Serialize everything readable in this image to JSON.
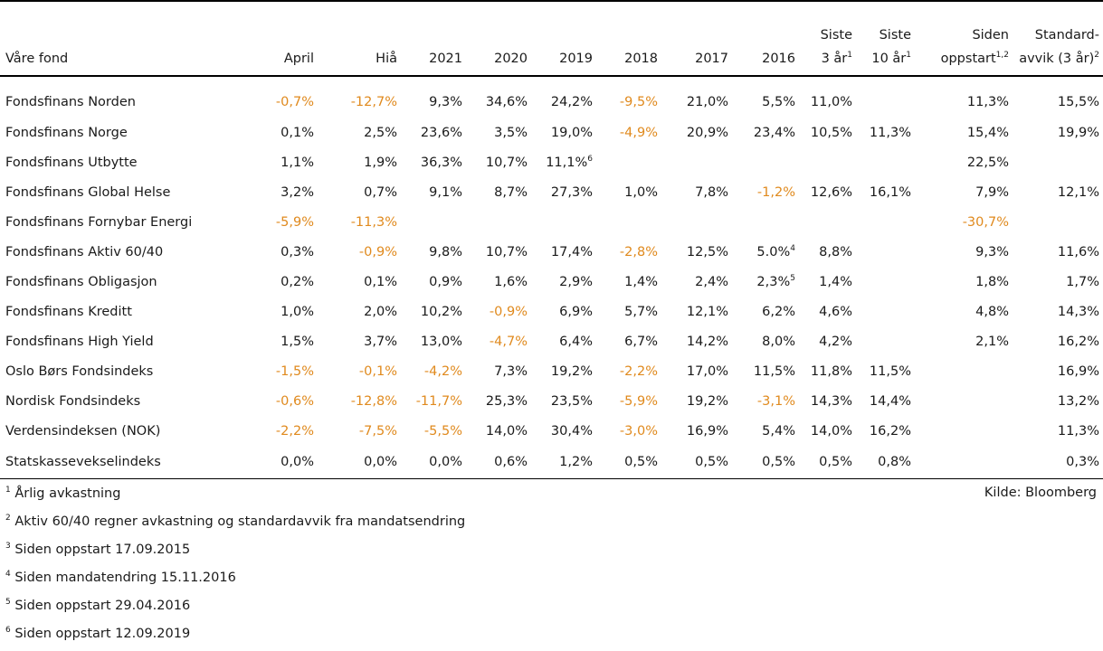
{
  "headers": [
    {
      "main": "Våre fond",
      "sup": ""
    },
    {
      "main": "April",
      "sup": ""
    },
    {
      "main": "Hiå",
      "sup": ""
    },
    {
      "main": "2021",
      "sup": ""
    },
    {
      "main": "2020",
      "sup": ""
    },
    {
      "main": "2019",
      "sup": ""
    },
    {
      "main": "2018",
      "sup": ""
    },
    {
      "main": "2017",
      "sup": ""
    },
    {
      "main": "2016",
      "sup": ""
    },
    {
      "line1": "Siste",
      "main": "3 år",
      "sup": "1"
    },
    {
      "line1": "Siste",
      "main": "10 år",
      "sup": "1"
    },
    {
      "line1": "Siden",
      "main": "oppstart",
      "sup": "1,2"
    },
    {
      "line1": "Standard-",
      "main": "avvik (3 år)",
      "sup": "2"
    }
  ],
  "rows": [
    {
      "name": "Fondsfinans Norden",
      "cells": [
        "-0,7%",
        "-12,7%",
        "9,3%",
        "34,6%",
        "24,2%",
        "-9,5%",
        "21,0%",
        "5,5%",
        "11,0%",
        "",
        "11,3%",
        "15,5%"
      ]
    },
    {
      "name": "Fondsfinans Norge",
      "cells": [
        "0,1%",
        "2,5%",
        "23,6%",
        "3,5%",
        "19,0%",
        "-4,9%",
        "20,9%",
        "23,4%",
        "10,5%",
        "11,3%",
        "15,4%",
        "19,9%"
      ]
    },
    {
      "name": "Fondsfinans Utbytte",
      "cells": [
        "1,1%",
        "1,9%",
        "36,3%",
        "10,7%",
        "11,1%",
        "",
        "",
        "",
        "",
        "",
        "22,5%",
        ""
      ],
      "sups": {
        "4": "6"
      }
    },
    {
      "name": "Fondsfinans Global Helse",
      "cells": [
        "3,2%",
        "0,7%",
        "9,1%",
        "8,7%",
        "27,3%",
        "1,0%",
        "7,8%",
        "-1,2%",
        "12,6%",
        "16,1%",
        "7,9%",
        "12,1%"
      ]
    },
    {
      "name": "Fondsfinans Fornybar Energi",
      "cells": [
        "-5,9%",
        "-11,3%",
        "",
        "",
        "",
        "",
        "",
        "",
        "",
        "",
        "-30,7%",
        ""
      ]
    },
    {
      "name": "Fondsfinans Aktiv 60/40",
      "cells": [
        "0,3%",
        "-0,9%",
        "9,8%",
        "10,7%",
        "17,4%",
        "-2,8%",
        "12,5%",
        "5.0%",
        "8,8%",
        "",
        "9,3%",
        "11,6%"
      ],
      "sups": {
        "7": "4"
      }
    },
    {
      "name": "Fondsfinans Obligasjon",
      "cells": [
        "0,2%",
        "0,1%",
        "0,9%",
        "1,6%",
        "2,9%",
        "1,4%",
        "2,4%",
        "2,3%",
        "1,4%",
        "",
        "1,8%",
        "1,7%"
      ],
      "sups": {
        "7": "5"
      }
    },
    {
      "name": "Fondsfinans Kreditt",
      "cells": [
        "1,0%",
        "2,0%",
        "10,2%",
        "-0,9%",
        "6,9%",
        "5,7%",
        "12,1%",
        "6,2%",
        "4,6%",
        "",
        "4,8%",
        "14,3%"
      ]
    },
    {
      "name": "Fondsfinans High Yield",
      "cells": [
        "1,5%",
        "3,7%",
        "13,0%",
        "-4,7%",
        "6,4%",
        "6,7%",
        "14,2%",
        "8,0%",
        "4,2%",
        "",
        "2,1%",
        "16,2%"
      ]
    },
    {
      "name": "Oslo Børs Fondsindeks",
      "cells": [
        "-1,5%",
        "-0,1%",
        "-4,2%",
        "7,3%",
        "19,2%",
        "-2,2%",
        "17,0%",
        "11,5%",
        "11,8%",
        "11,5%",
        "",
        "16,9%"
      ]
    },
    {
      "name": "Nordisk Fondsindeks",
      "cells": [
        "-0,6%",
        "-12,8%",
        "-11,7%",
        "25,3%",
        "23,5%",
        "-5,9%",
        "19,2%",
        "-3,1%",
        "14,3%",
        "14,4%",
        "",
        "13,2%"
      ]
    },
    {
      "name": "Verdensindeksen (NOK)",
      "cells": [
        "-2,2%",
        "-7,5%",
        "-5,5%",
        "14,0%",
        "30,4%",
        "-3,0%",
        "16,9%",
        "5,4%",
        "14,0%",
        "16,2%",
        "",
        "11,3%"
      ]
    },
    {
      "name": "Statskassevekselindeks",
      "cells": [
        "0,0%",
        "0,0%",
        "0,0%",
        "0,6%",
        "1,2%",
        "0,5%",
        "0,5%",
        "0,5%",
        "0,5%",
        "0,8%",
        "",
        "0,3%"
      ]
    }
  ],
  "footnotes": [
    {
      "num": "1",
      "text": "Årlig avkastning"
    },
    {
      "num": "2",
      "text": "Aktiv 60/40 regner avkastning og standardavvik fra mandatsendring"
    },
    {
      "num": "3",
      "text": "Siden oppstart 17.09.2015"
    },
    {
      "num": "4",
      "text": "Siden mandatendring 15.11.2016"
    },
    {
      "num": "5",
      "text": "Siden oppstart 29.04.2016"
    },
    {
      "num": "6",
      "text": "Siden oppstart 12.09.2019"
    }
  ],
  "source": "Kilde: Bloomberg",
  "colors": {
    "negative": "#e08a1e",
    "text": "#1a1a1a"
  }
}
